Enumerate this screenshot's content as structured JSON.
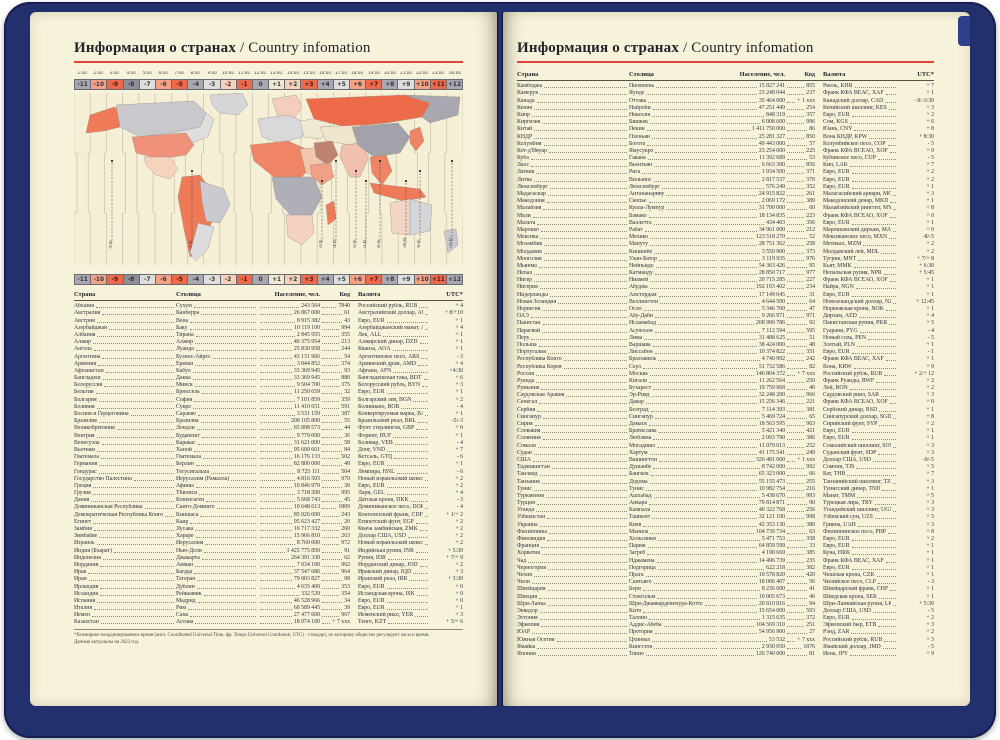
{
  "title": {
    "ru": "Информация о странах",
    "sep": " / ",
    "en": "Country infomation"
  },
  "colors": {
    "accent_red": "#e0453a",
    "cover_navy": "#22306e",
    "page_cream": "#f7f2da",
    "cell_red": "#ec6a4b",
    "cell_salmon": "#f4a286",
    "cell_pink": "#f7d0ba",
    "cell_gray": "#a9a8b0",
    "cell_gray_dark": "#8f8e98",
    "cell_light": "#dededd",
    "cell_cream": "#efe9d2"
  },
  "timescale": {
    "times": [
      "1:00",
      "2:00",
      "3:00",
      "4:00",
      "5:00",
      "6:00",
      "7:00",
      "8:00",
      "9:00",
      "10:00",
      "11:00",
      "12:00",
      "13:00",
      "14:00",
      "15:00",
      "16:00",
      "17:00",
      "18:00",
      "19:00",
      "20:00",
      "21:00",
      "22:00",
      "23:00",
      "00:00"
    ],
    "offsets": [
      {
        "label": "-11",
        "color": "cell_gray"
      },
      {
        "label": "-10",
        "color": "cell_salmon"
      },
      {
        "label": "-9",
        "color": "cell_red"
      },
      {
        "label": "-8",
        "color": "cell_gray_dark"
      },
      {
        "label": "-7",
        "color": "cell_light"
      },
      {
        "label": "-6",
        "color": "cell_salmon"
      },
      {
        "label": "-5",
        "color": "cell_red"
      },
      {
        "label": "-4",
        "color": "cell_gray"
      },
      {
        "label": "-3",
        "color": "cell_light"
      },
      {
        "label": "-2",
        "color": "cell_pink"
      },
      {
        "label": "-1",
        "color": "cell_red"
      },
      {
        "label": "0",
        "color": "cell_gray"
      },
      {
        "label": "+1",
        "color": "cell_cream"
      },
      {
        "label": "+2",
        "color": "cell_pink"
      },
      {
        "label": "+3",
        "color": "cell_red"
      },
      {
        "label": "+4",
        "color": "cell_gray"
      },
      {
        "label": "+5",
        "color": "cell_light"
      },
      {
        "label": "+6",
        "color": "cell_salmon"
      },
      {
        "label": "+7",
        "color": "cell_red"
      },
      {
        "label": "+8",
        "color": "cell_gray"
      },
      {
        "label": "+9",
        "color": "cell_light"
      },
      {
        "label": "+10",
        "color": "cell_salmon"
      },
      {
        "label": "+11",
        "color": "cell_red"
      },
      {
        "label": "+12",
        "color": "cell_gray"
      }
    ]
  },
  "map": {
    "halfhour_labels": [
      "-9:30",
      "-3:30",
      "+3:30",
      "+4:30",
      "+5:30",
      "+5:45",
      "+6:30",
      "+9:30",
      "+10:30",
      "+12:45"
    ]
  },
  "table": {
    "headers": {
      "country": "Страна",
      "capital": "Столица",
      "population": "Население, чел.",
      "code": "Код",
      "currency": "Валюта",
      "utc": "UTC*"
    }
  },
  "left_rows": [
    [
      "Абхазия",
      "Сухум",
      "243 564",
      "7840",
      "Российский рубль, RUB",
      "+ 4"
    ],
    [
      "Австралия",
      "Канберра",
      "26 867 000",
      "61",
      "Австралийский доллар, AUD",
      "+ 8/+10"
    ],
    [
      "Австрия",
      "Вена",
      "8 915 382",
      "43",
      "Евро, EUR",
      "+ 1"
    ],
    [
      "Азербайджан",
      "Баку",
      "10 119 100",
      "994",
      "Азербайджанский манат, AZN",
      "+ 4"
    ],
    [
      "Албания",
      "Тирана",
      "2 845 955",
      "355",
      "Лек, ALL",
      "+ 1"
    ],
    [
      "Алжир",
      "Алжир",
      "40 375 954",
      "213",
      "Алжирский динар, DZD",
      "+ 1"
    ],
    [
      "Ангола",
      "Луанда",
      "25 830 958",
      "244",
      "Кванза, AOA",
      "+ 1"
    ],
    [
      "Аргентина",
      "Буэнос-Айрес",
      "43 131 966",
      "54",
      "Аргентинское песо, ARS",
      "- 3"
    ],
    [
      "Армения",
      "Ереван",
      "3 044 852",
      "374",
      "Армянский драм, AMD",
      "+ 4"
    ],
    [
      "Афганистан",
      "Кабул",
      "33 369 945",
      "93",
      "Афгани, AFN",
      "+4:30"
    ],
    [
      "Бангладеш",
      "Дакка",
      "33 369 945",
      "880",
      "Бангладешская така, BDT",
      "+ 6"
    ],
    [
      "Белоруссия",
      "Минск",
      "9 504 700",
      "375",
      "Белорусский рубль, BYN",
      "+ 3"
    ],
    [
      "Бельгия",
      "Брюссель",
      "11 250 659",
      "32",
      "Евро, EUR",
      "+ 1"
    ],
    [
      "Болгария",
      "София",
      "7 101 859",
      "359",
      "Болгарский лев, BGN",
      "+ 2"
    ],
    [
      "Боливия",
      "Сукре",
      "11 410 651",
      "591",
      "Боливиано, BOB",
      "- 4"
    ],
    [
      "Босния и Герцеговина",
      "Сараево",
      "3 531 159",
      "387",
      "Конвертируемая марка, BAM",
      "+ 1"
    ],
    [
      "Бразилия",
      "Бразилиа",
      "208 105 800",
      "55",
      "Бразильский реал, BRL",
      "-5/-3"
    ],
    [
      "Великобритания",
      "Лондон",
      "65 808 573",
      "44",
      "Фунт стерлингов, GBP",
      "+ 0"
    ],
    [
      "Венгрия",
      "Будапешт",
      "9 779 000",
      "36",
      "Форинт, HUF",
      "+ 1"
    ],
    [
      "Венесуэла",
      "Каракас",
      "31 621 000",
      "58",
      "Боливар, VEB",
      "- 4"
    ],
    [
      "Вьетнам",
      "Ханой",
      "95 600 601",
      "84",
      "Донг, VND",
      "+ 7"
    ],
    [
      "Гватемала",
      "Гватемала",
      "16 176 133",
      "502",
      "Кетсаль, GTQ",
      "- 6"
    ],
    [
      "Германия",
      "Берлин",
      "82 800 000",
      "49",
      "Евро, EUR",
      "+ 1"
    ],
    [
      "Гондурас",
      "Тегусигальпа",
      "8 725 111",
      "504",
      "Лемпира, HNL",
      "- 6"
    ],
    [
      "Государство Палестина",
      "Иерусалим (Рамалла)",
      "4 816 503",
      "970",
      "Новый израильский шекель, ILS",
      "+ 2"
    ],
    [
      "Греция",
      "Афины",
      "10 846 979",
      "30",
      "Евро, EUR",
      "+ 2"
    ],
    [
      "Грузия",
      "Тбилиси",
      "3 718 200",
      "995",
      "Лари, GEL",
      "+ 4"
    ],
    [
      "Дания",
      "Копенгаген",
      "5 668 743",
      "45",
      "Датская крона, DKK",
      "- 3"
    ],
    [
      "Доминиканская Республика",
      "Санто-Доминго",
      "10 648 613",
      "1809",
      "Доминиканское песо, DOP",
      "- 4"
    ],
    [
      "Демократическая Республика Конго",
      "Киншаса",
      "85 026 000",
      "243",
      "Конголезский франк, CDF",
      "+ 1/+ 2"
    ],
    [
      "Египет",
      "Каир",
      "95 623 427",
      "20",
      "Египетский фунт, EGP",
      "+ 2"
    ],
    [
      "Замбия",
      "Лусака",
      "16 717 332",
      "260",
      "Квача замбийская, ZMK",
      "+ 2"
    ],
    [
      "Зимбабве",
      "Хараре",
      "15 966 810",
      "263",
      "Доллар США, USD",
      "+ 2"
    ],
    [
      "Израиль",
      "Иерусалим",
      "8 760 000",
      "972",
      "Новый израильский шекель, ILS",
      "+ 2"
    ],
    [
      "Индия (Бхарат)",
      "Нью-Дели",
      "1 425 775 850",
      "91",
      "Индийская рупия, INR",
      "+ 5:30"
    ],
    [
      "Индонезия",
      "Джакарта",
      "264 391 330",
      "62",
      "Рупия, IDR",
      "+ 7/+ 9"
    ],
    [
      "Иордания",
      "Амман",
      "7 034 100",
      "962",
      "Иорданский динар, JOD",
      "+ 2"
    ],
    [
      "Ирак",
      "Багдад",
      "37 547 686",
      "964",
      "Иракский динар, IQD",
      "+ 3"
    ],
    [
      "Иран",
      "Тегеран",
      "79 003 827",
      "98",
      "Иранский реал, IRR",
      "+ 3:30"
    ],
    [
      "Ирландия",
      "Дублин",
      "4 635 400",
      "353",
      "Евро, EUR",
      "+ 0"
    ],
    [
      "Исландия",
      "Рейкьявик",
      "332 529",
      "354",
      "Исландская крона, ISK",
      "+ 0"
    ],
    [
      "Испания",
      "Мадрид",
      "46 528 966",
      "34",
      "Евро, EUR",
      "+ 0"
    ],
    [
      "Италия",
      "Рим",
      "60 589 445",
      "39",
      "Евро, EUR",
      "+ 1"
    ],
    [
      "Йемен",
      "Сана",
      "27 477 600",
      "967",
      "Йеменский риал, YER",
      "+ 3"
    ],
    [
      "Казахстан",
      "Астана",
      "18 074 100",
      "+ 7 ххх",
      "Тенге, KZT",
      "+ 5/+ 6"
    ]
  ],
  "right_rows": [
    [
      "Камбоджа",
      "Пномпень",
      "15 827 241",
      "855",
      "Риель, KHR",
      "+ 7"
    ],
    [
      "Камерун",
      "Яунде",
      "23 248 044",
      "237",
      "Франк КФА ВЕАС, XAF",
      "+ 1"
    ],
    [
      "Канада",
      "Оттава",
      "35 464 000",
      "+ 1 ххх",
      "Канадский доллар, CAD",
      "- 8/-3:30"
    ],
    [
      "Кения",
      "Найроби",
      "47 251 449",
      "254",
      "Кенийский шиллинг, KES",
      "+ 3"
    ],
    [
      "Кипр",
      "Никосия",
      "848 319",
      "357",
      "Евро, EUR",
      "+ 2"
    ],
    [
      "Киргизия",
      "Бишкек",
      "6 008 600",
      "996",
      "Сом, KGS",
      "+ 6"
    ],
    [
      "Китай",
      "Пекин",
      "1 411 750 000",
      "86",
      "Юань, CNY",
      "+ 8"
    ],
    [
      "КНДР",
      "Пхеньян",
      "25 281 327",
      "850",
      "Вона КНДР, KPW",
      "+ 8:30"
    ],
    [
      "Колумбия",
      "Богота",
      "49 443 000",
      "57",
      "Колумбийское песо, COP",
      "- 5"
    ],
    [
      "Кот-д'Ивуар",
      "Ямусукро",
      "23 254 000",
      "225",
      "Франк КФА ВСЕАО, XOF",
      "+ 0"
    ],
    [
      "Куба",
      "Гавана",
      "11 392 689",
      "53",
      "Кубинское песо, CUP",
      "- 5"
    ],
    [
      "Лаос",
      "Вьентьян",
      "6 663 300",
      "856",
      "Кип, LAK",
      "+ 7"
    ],
    [
      "Латвия",
      "Рига",
      "1 934 500",
      "371",
      "Евро, EUR",
      "+ 2"
    ],
    [
      "Литва",
      "Вильнюс",
      "2 817 537",
      "370",
      "Евро, EUR",
      "+ 2"
    ],
    [
      "Люксембург",
      "Люксембург",
      "576 249",
      "352",
      "Евро, EUR",
      "+ 1"
    ],
    [
      "Мадагаскар",
      "Антананариву",
      "24 915 822",
      "261",
      "Малагасийский ариари, MGA",
      "+ 3"
    ],
    [
      "Македония",
      "Скопье",
      "2 069 172",
      "389",
      "Македонский денар, MKD",
      "+ 1"
    ],
    [
      "Малайзия",
      "Куала-Лумпур",
      "31 700 000",
      "60",
      "Малайзийский ринггит, MYR",
      "+ 8"
    ],
    [
      "Мали",
      "Бамако",
      "18 134 835",
      "223",
      "Франк КФА ВСЕАО, XOF",
      "+ 0"
    ],
    [
      "Мальта",
      "Валлетта",
      "434 403",
      "356",
      "Евро, EUR",
      "+ 1"
    ],
    [
      "Марокко",
      "Рабат",
      "34 961 000",
      "212",
      "Марокканский дирхам, MAD",
      "+ 0"
    ],
    [
      "Мексика",
      "Мехико",
      "123 518 270",
      "52",
      "Мексиканское песо, MXN",
      "-8/-5"
    ],
    [
      "Мозамбик",
      "Мапуту",
      "28 751 362",
      "258",
      "Метикал, MZM",
      "+ 2"
    ],
    [
      "Молдавия",
      "Кишинёв",
      "3 550 900",
      "373",
      "Молдавский лей, MDL",
      "+ 2"
    ],
    [
      "Монголия",
      "Улан-Батор",
      "3 119 935",
      "976",
      "Тугрик, MNT",
      "+ 7/+ 8"
    ],
    [
      "Мьянма",
      "Нейпьидо",
      "54 363 426",
      "95",
      "Кьят, MMK",
      "+ 6:30"
    ],
    [
      "Непал",
      "Катманду",
      "28 850 717",
      "977",
      "Непальская рупия, NPR",
      "+ 5:45"
    ],
    [
      "Нигер",
      "Ниамей",
      "20 715 285",
      "227",
      "Франк КФА ВСЕАО, XOF",
      "+ 1"
    ],
    [
      "Нигерия",
      "Абуджа",
      "192 193 402",
      "234",
      "Найра, NGN",
      "+ 1"
    ],
    [
      "Нидерланды",
      "Амстердам",
      "17 149 045",
      "31",
      "Евро, EUR",
      "+ 1"
    ],
    [
      "Новая Зеландия",
      "Веллингтон",
      "4 644 500",
      "64",
      "Новозеландский доллар, NZD",
      "+ 12:45"
    ],
    [
      "Норвегия",
      "Осло",
      "5 346 700",
      "47",
      "Норвежская крона, NOK",
      "+ 1"
    ],
    [
      "ОАЭ",
      "Абу-Даби",
      "9 266 971",
      "971",
      "Дирхам, AED",
      "+ 4"
    ],
    [
      "Пакистан",
      "Исламабад",
      "208 990 786",
      "92",
      "Пакистанская рупия, PKR",
      "+ 5"
    ],
    [
      "Парагвай",
      "Асунсьон",
      "7 112 594",
      "595",
      "Гуарани, PYG",
      "- 4"
    ],
    [
      "Перу",
      "Лима",
      "31 488 625",
      "51",
      "Новый соль, PEN",
      "- 5"
    ],
    [
      "Польша",
      "Варшава",
      "38 424 000",
      "48",
      "Злотый, PLN",
      "+ 1"
    ],
    [
      "Португалия",
      "Лиссабон",
      "10 374 822",
      "351",
      "Евро, EUR",
      "- 1"
    ],
    [
      "Республика Конго",
      "Браззавиль",
      "4 740 992",
      "242",
      "Франк КФА ВЕАС, XAF",
      "+ 1"
    ],
    [
      "Республика Корея",
      "Сеул",
      "51 732 586",
      "82",
      "Вона, KRW",
      "+ 9"
    ],
    [
      "Россия",
      "Москва",
      "146 804 372",
      "+ 7 ххх",
      "Российский рубль, RUB",
      "+ 2/+ 12"
    ],
    [
      "Руанда",
      "Кигали",
      "11 262 564",
      "250",
      "Франк Руанды, RWF",
      "+ 2"
    ],
    [
      "Румыния",
      "Бухарест",
      "19 759 968",
      "40",
      "Лей, RON",
      "+ 2"
    ],
    [
      "Саудовская Аравия",
      "Эр-Рияд",
      "32 248 200",
      "966",
      "Саудовский риял, SAR",
      "+ 3"
    ],
    [
      "Сенегал",
      "Дакар",
      "15 256 346",
      "221",
      "Франк КФА ВСЕАО, XOF",
      "+ 0"
    ],
    [
      "Сербия",
      "Белград",
      "7 114 393",
      "381",
      "Сербский динар, RSD",
      "+ 1"
    ],
    [
      "Сингапур",
      "Сингапур",
      "5 469 724",
      "65",
      "Сингапурский доллар, SGD",
      "+ 8"
    ],
    [
      "Сирия",
      "Дамаск",
      "18 563 595",
      "963",
      "Сирийский фунт, SYP",
      "+ 2"
    ],
    [
      "Словакия",
      "Братислава",
      "5 421 349",
      "421",
      "Евро, EUR",
      "+ 1"
    ],
    [
      "Словения",
      "Любляна",
      "2 093 790",
      "386",
      "Евро, EUR",
      "+ 1"
    ],
    [
      "Сомали",
      "Могадишо",
      "11 079 013",
      "252",
      "Сомалийский шиллинг, SOS",
      "+ 3"
    ],
    [
      "Судан",
      "Хартум",
      "41 175 541",
      "249",
      "Суданский фунт, SDP",
      "+ 3"
    ],
    [
      "США",
      "Вашингтон",
      "326 481 000",
      "+ 1 ххх",
      "Доллар США, USD",
      "-9/-5"
    ],
    [
      "Таджикистан",
      "Душанбе",
      "8 742 000",
      "992",
      "Сомони, TJS",
      "+ 5"
    ],
    [
      "Таиланд",
      "Бангкок",
      "65 323 000",
      "66",
      "Бат, THB",
      "+ 7"
    ],
    [
      "Танзания",
      "Додома",
      "55 155 473",
      "255",
      "Танзанийский шиллинг, TZS",
      "+ 3"
    ],
    [
      "Тунис",
      "Тунис",
      "10 982 754",
      "216",
      "Тунисский динар, TND",
      "+ 1"
    ],
    [
      "Туркмения",
      "Ашхабад",
      "5 438 670",
      "993",
      "Манат, TMM",
      "+ 5"
    ],
    [
      "Турция",
      "Анкара",
      "79 814 871",
      "90",
      "Турецкая лира, TRY",
      "+ 3"
    ],
    [
      "Уганда",
      "Кампала",
      "40 322 768",
      "256",
      "Угандийский шиллинг, UGX",
      "+ 3"
    ],
    [
      "Узбекистан",
      "Ташкент",
      "32 121 100",
      "998",
      "Узбекский сум, UZS",
      "+ 5"
    ],
    [
      "Украина",
      "Киев",
      "42 353 130",
      "380",
      "Гривна, UAH",
      "+ 3"
    ],
    [
      "Филиппины",
      "Манила",
      "104 739 734",
      "63",
      "Филиппинское песо, PHP",
      "+ 8"
    ],
    [
      "Финляндия",
      "Хельсинки",
      "5 471 753",
      "358",
      "Евро, EUR",
      "+ 2"
    ],
    [
      "Франция",
      "Париж",
      "64 859 599",
      "33",
      "Евро, EUR",
      "+ 1"
    ],
    [
      "Хорватия",
      "Загреб",
      "4 190 669",
      "385",
      "Куна, HRK",
      "+ 1"
    ],
    [
      "Чад",
      "Нджамена",
      "14 496 739",
      "235",
      "Франк КФА ВЕАС, XAF",
      "+ 1"
    ],
    [
      "Черногория",
      "Подгорица",
      "622 218",
      "382",
      "Евро, EUR",
      "+ 1"
    ],
    [
      "Чехия",
      "Прага",
      "10 578 820",
      "420",
      "Чешская крона, CZK",
      "+ 1"
    ],
    [
      "Чили",
      "Сантьяго",
      "18 006 407",
      "56",
      "Чилийское песо, CLP",
      "- 3"
    ],
    [
      "Швейцария",
      "Берн",
      "8 236 600",
      "41",
      "Швейцарский франк, CHF",
      "+ 1"
    ],
    [
      "Швеция",
      "Стокгольм",
      "10 005 673",
      "46",
      "Шведская крона, SEK",
      "+ 1"
    ],
    [
      "Шри-Ланка",
      "Шри-Джаяварденепура-Котте",
      "20 810 816",
      "94",
      "Шри-Ланкийская рупия, LKR",
      "+ 5:30"
    ],
    [
      "Эквадор",
      "Кито",
      "15 654 000",
      "593",
      "Доллар США, USD",
      "- 5"
    ],
    [
      "Эстония",
      "Таллин",
      "1 315 635",
      "372",
      "Евро, EUR",
      "+ 2"
    ],
    [
      "Эфиопия",
      "Аддис-Абеба",
      "104 569 310",
      "251",
      "Эфиопский быр, ETB",
      "+ 3"
    ],
    [
      "ЮАР",
      "Претория",
      "54 956 900",
      "27",
      "Рэнд, ZAR",
      "+ 2"
    ],
    [
      "Южная Осетия",
      "Цхинвал",
      "53 532",
      "+ 7 ххх",
      "Российский рубль, RUB",
      "+ 3"
    ],
    [
      "Ямайка",
      "Кингстон",
      "2 930 050",
      "1876",
      "Ямайский доллар, JMD",
      "- 5"
    ],
    [
      "Япония",
      "Токио",
      "126 740 000",
      "81",
      "Иена, JPY",
      "+ 9"
    ]
  ],
  "footnote": {
    "line1": "*Всемирное координированное время (англ. Coordinated Universal Time, фр. Temps Universel Coordonné; UTC) - стандарт, по которому общество регулирует часы и время.",
    "line2": "Данные актуальны на 2023 год."
  }
}
